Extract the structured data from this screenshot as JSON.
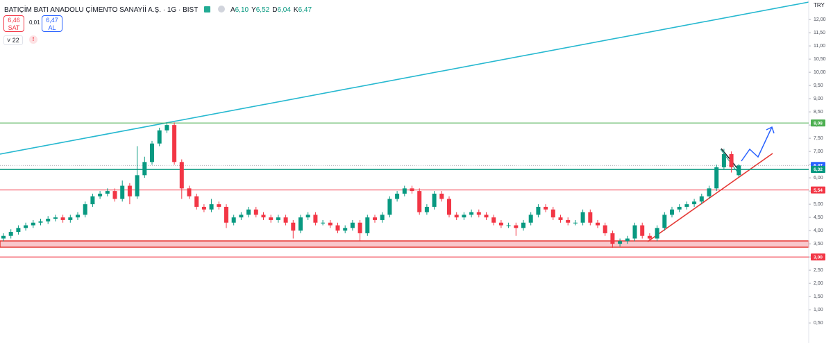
{
  "header": {
    "title": "BATIÇİM BATI ANADOLU ÇİMENTO SANAYİİ A.Ş. · 1G · BIST",
    "ohlc": [
      {
        "key": "A",
        "value": "6,10"
      },
      {
        "key": "Y",
        "value": "6,52"
      },
      {
        "key": "D",
        "value": "6,04"
      },
      {
        "key": "K",
        "value": "6,47"
      }
    ],
    "sell": {
      "price": "6,46",
      "label": "SAT"
    },
    "spread": "0,01",
    "buy": {
      "price": "6,47",
      "label": "AL"
    },
    "indicators": "22"
  },
  "chart_data": {
    "type": "candlestick",
    "currency": "TRY",
    "up_color": "#089981",
    "down_color": "#f23645",
    "ylim": [
      -0.26,
      12.74
    ],
    "yticks": [
      {
        "value": 0.5,
        "label": "0,50"
      },
      {
        "value": 1,
        "label": "1,00"
      },
      {
        "value": 1.5,
        "label": "1,50"
      },
      {
        "value": 2,
        "label": "2,00"
      },
      {
        "value": 2.5,
        "label": "2,50"
      },
      {
        "value": 3,
        "label": "3,00"
      },
      {
        "value": 3.5,
        "label": "3,50"
      },
      {
        "value": 4,
        "label": "4,00"
      },
      {
        "value": 4.5,
        "label": "4,50"
      },
      {
        "value": 5,
        "label": "5,00"
      },
      {
        "value": 5.5,
        "label": "5,50"
      },
      {
        "value": 6,
        "label": "6,00"
      },
      {
        "value": 6.5,
        "label": "6,50"
      },
      {
        "value": 7,
        "label": "7,00"
      },
      {
        "value": 7.5,
        "label": "7,50"
      },
      {
        "value": 8,
        "label": "8,00"
      },
      {
        "value": 8.5,
        "label": "8,50"
      },
      {
        "value": 9,
        "label": "9,00"
      },
      {
        "value": 9.5,
        "label": "9,50"
      },
      {
        "value": 10,
        "label": "10,00"
      },
      {
        "value": 10.5,
        "label": "10,50"
      },
      {
        "value": 11,
        "label": "11,00"
      },
      {
        "value": 11.5,
        "label": "11,50"
      },
      {
        "value": 12,
        "label": "12,00"
      }
    ],
    "open": [
      3.7,
      3.8,
      3.95,
      4.1,
      4.2,
      4.3,
      4.35,
      4.45,
      4.5,
      4.4,
      4.5,
      4.6,
      5.0,
      5.3,
      5.4,
      5.5,
      5.2,
      5.7,
      5.3,
      6.1,
      6.6,
      7.3,
      7.8,
      8.0,
      6.6,
      5.6,
      5.3,
      4.9,
      4.8,
      5.0,
      4.9,
      4.3,
      4.5,
      4.6,
      4.8,
      4.6,
      4.5,
      4.4,
      4.5,
      4.3,
      4.0,
      4.5,
      4.6,
      4.3,
      4.3,
      4.2,
      4.0,
      4.1,
      4.3,
      3.9,
      4.5,
      4.4,
      4.6,
      5.2,
      5.4,
      5.6,
      5.5,
      4.7,
      4.9,
      5.4,
      5.2,
      4.6,
      4.5,
      4.6,
      4.7,
      4.6,
      4.5,
      4.3,
      4.2,
      4.2,
      4.1,
      4.3,
      4.6,
      4.9,
      4.8,
      4.5,
      4.4,
      4.3,
      4.3,
      4.7,
      4.3,
      4.2,
      3.9,
      3.5,
      3.6,
      3.7,
      4.2,
      3.8,
      3.7,
      4.1,
      4.6,
      4.8,
      4.9,
      5.0,
      5.1,
      5.3,
      5.6,
      6.4,
      6.9,
      6.1
    ],
    "high": [
      3.9,
      4.05,
      4.2,
      4.3,
      4.4,
      4.45,
      4.55,
      4.6,
      4.6,
      4.6,
      4.7,
      5.1,
      5.4,
      5.5,
      5.6,
      5.6,
      5.9,
      5.8,
      7.2,
      6.8,
      7.4,
      7.9,
      8.1,
      8.1,
      6.7,
      5.7,
      5.4,
      5.0,
      5.2,
      5.1,
      5.0,
      4.6,
      4.7,
      4.9,
      4.9,
      4.7,
      4.6,
      4.6,
      4.6,
      4.4,
      4.6,
      4.7,
      4.7,
      4.4,
      4.4,
      4.3,
      4.2,
      4.4,
      4.4,
      4.6,
      4.6,
      4.7,
      5.3,
      5.5,
      5.7,
      5.7,
      5.6,
      5.0,
      5.5,
      5.5,
      5.3,
      4.7,
      4.7,
      4.8,
      4.8,
      4.7,
      4.6,
      4.4,
      4.3,
      4.3,
      4.4,
      4.7,
      5.0,
      5.0,
      4.9,
      4.6,
      4.5,
      4.4,
      4.8,
      4.8,
      4.4,
      4.3,
      4.0,
      3.7,
      3.8,
      4.3,
      4.3,
      3.9,
      4.2,
      4.7,
      4.9,
      5.0,
      5.1,
      5.2,
      5.4,
      5.7,
      6.5,
      7.1,
      7.0,
      6.52
    ],
    "low": [
      3.6,
      3.7,
      3.85,
      4.0,
      4.1,
      4.2,
      4.25,
      4.35,
      4.3,
      4.3,
      4.4,
      4.5,
      4.9,
      5.2,
      5.3,
      5.1,
      5.1,
      5.0,
      5.2,
      6.0,
      6.5,
      7.2,
      7.7,
      6.5,
      5.2,
      5.2,
      4.8,
      4.7,
      4.7,
      4.8,
      4.1,
      4.2,
      4.4,
      4.5,
      4.5,
      4.4,
      4.3,
      4.3,
      4.2,
      3.7,
      3.9,
      4.4,
      4.2,
      4.2,
      4.1,
      3.9,
      3.9,
      4.0,
      3.6,
      3.8,
      4.3,
      4.3,
      4.5,
      5.1,
      5.3,
      5.4,
      4.6,
      4.6,
      4.8,
      5.1,
      4.5,
      4.4,
      4.4,
      4.5,
      4.5,
      4.4,
      4.2,
      4.1,
      4.1,
      3.8,
      4.0,
      4.2,
      4.5,
      4.7,
      4.4,
      4.3,
      4.2,
      4.2,
      4.2,
      4.2,
      4.1,
      3.8,
      3.35,
      3.4,
      3.5,
      3.6,
      3.7,
      3.6,
      3.6,
      4.0,
      4.5,
      4.7,
      4.8,
      4.9,
      5.0,
      5.2,
      5.5,
      6.3,
      6.2,
      6.04
    ],
    "close": [
      3.8,
      3.95,
      4.1,
      4.2,
      4.3,
      4.35,
      4.45,
      4.5,
      4.4,
      4.5,
      4.6,
      5.0,
      5.3,
      5.4,
      5.5,
      5.2,
      5.7,
      5.3,
      6.1,
      6.6,
      7.3,
      7.8,
      8.0,
      6.6,
      5.6,
      5.3,
      4.9,
      4.8,
      5.0,
      4.9,
      4.3,
      4.5,
      4.6,
      4.8,
      4.6,
      4.5,
      4.4,
      4.5,
      4.3,
      4.0,
      4.5,
      4.6,
      4.3,
      4.3,
      4.2,
      4.0,
      4.1,
      4.3,
      3.9,
      4.5,
      4.4,
      4.6,
      5.2,
      5.4,
      5.6,
      5.5,
      4.7,
      4.9,
      5.4,
      5.2,
      4.6,
      4.5,
      4.6,
      4.7,
      4.6,
      4.5,
      4.3,
      4.2,
      4.2,
      4.1,
      4.3,
      4.6,
      4.9,
      4.8,
      4.5,
      4.4,
      4.3,
      4.3,
      4.7,
      4.3,
      4.2,
      3.9,
      3.5,
      3.6,
      3.7,
      4.2,
      3.8,
      3.7,
      4.1,
      4.6,
      4.8,
      4.9,
      5.0,
      5.1,
      5.3,
      5.6,
      6.4,
      6.9,
      6.4,
      6.47
    ],
    "levels": [
      {
        "value": 8.08,
        "label": "8,08",
        "color": "#4caf50",
        "line": "solid"
      },
      {
        "value": 6.47,
        "label": "6,47",
        "color": "#2962ff",
        "line": "dotted"
      },
      {
        "value": 6.32,
        "label": "6,32",
        "color": "#089981",
        "line": "solid"
      },
      {
        "value": 5.54,
        "label": "5,54",
        "color": "#f23645",
        "line": "solid"
      },
      {
        "value": 3.0,
        "label": "3,00",
        "color": "#f23645",
        "line": "solid"
      }
    ]
  }
}
